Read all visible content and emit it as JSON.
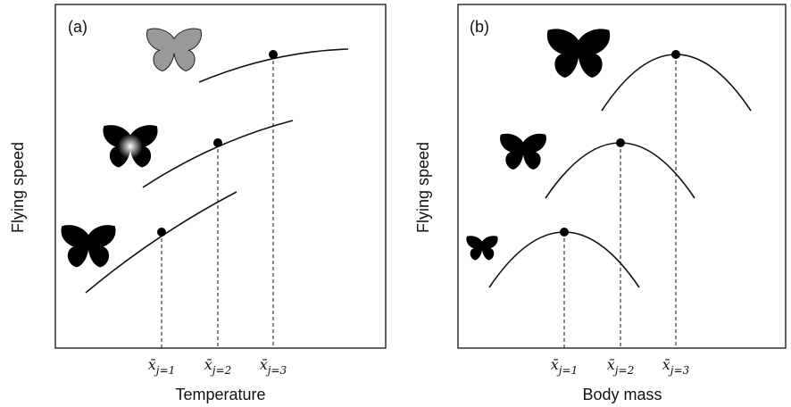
{
  "panels": [
    {
      "label": "(a)",
      "x_label": "Temperature",
      "y_label": "Flying speed",
      "ticks": [
        {
          "symbol": "x̄",
          "subscript": "j=1"
        },
        {
          "symbol": "x̄",
          "subscript": "j=2"
        },
        {
          "symbol": "x̄",
          "subscript": "j=3"
        }
      ]
    },
    {
      "label": "(b)",
      "x_label": "Body mass",
      "y_label": "Flying speed",
      "ticks": [
        {
          "symbol": "x̄",
          "subscript": "j=1"
        },
        {
          "symbol": "x̄",
          "subscript": "j=2"
        },
        {
          "symbol": "x̄",
          "subscript": "j=3"
        }
      ]
    }
  ]
}
